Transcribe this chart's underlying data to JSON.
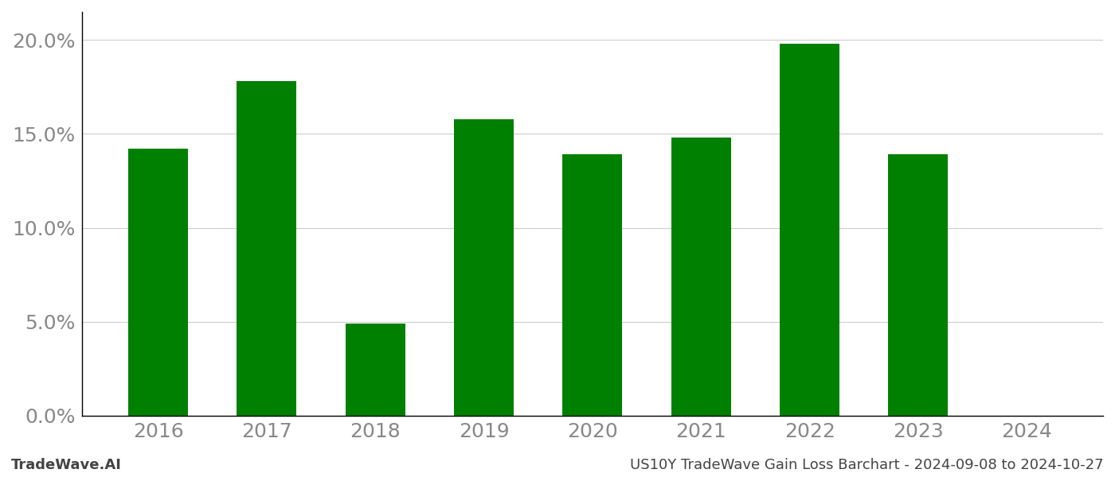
{
  "years": [
    "2016",
    "2017",
    "2018",
    "2019",
    "2020",
    "2021",
    "2022",
    "2023",
    "2024"
  ],
  "values": [
    0.142,
    0.178,
    0.049,
    0.158,
    0.139,
    0.148,
    0.198,
    0.139,
    0.0
  ],
  "bar_color": "#008000",
  "background_color": "#ffffff",
  "grid_color": "#cccccc",
  "tick_label_color": "#888888",
  "footer_left": "TradeWave.AI",
  "footer_right": "US10Y TradeWave Gain Loss Barchart - 2024-09-08 to 2024-10-27",
  "footer_color": "#444444",
  "ylim": [
    0,
    0.215
  ],
  "yticks": [
    0.0,
    0.05,
    0.1,
    0.15,
    0.2
  ],
  "ytick_labels": [
    "0.0%",
    "5.0%",
    "10.0%",
    "15.0%",
    "20.0%"
  ],
  "bar_width": 0.55,
  "figsize": [
    14,
    6
  ],
  "dpi": 100,
  "tick_fontsize": 18,
  "footer_fontsize": 13
}
